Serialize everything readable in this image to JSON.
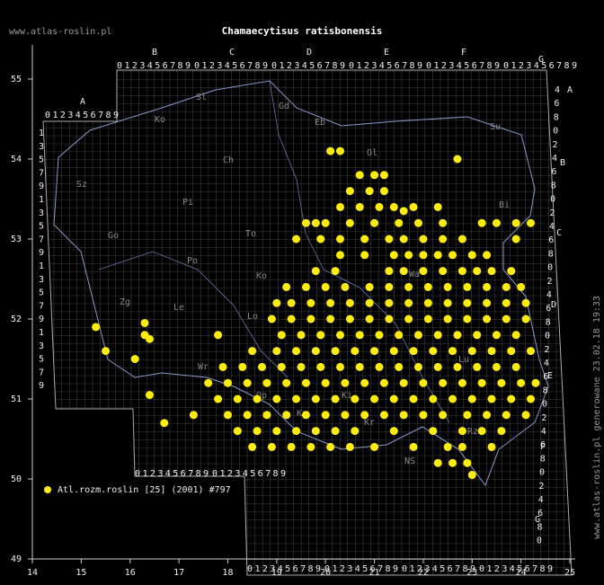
{
  "chart_data": {
    "type": "scatter",
    "title": "Chamaecytisus ratisbonensis",
    "site": "www.atlas-roslin.pl",
    "footnote": "www.atlas-roslin.pl generowane 23.02.18 19:33",
    "xlim": [
      14,
      25
    ],
    "ylim": [
      49,
      55
    ],
    "xticks": [
      14,
      15,
      16,
      17,
      18,
      19,
      20,
      21,
      22,
      23,
      24,
      25
    ],
    "yticks": [
      49,
      50,
      51,
      52,
      53,
      54,
      55
    ],
    "grid_letters": [
      "A",
      "B",
      "C",
      "D",
      "E",
      "F",
      "G"
    ],
    "grid_digits": "0123456789",
    "row_digits": [
      "1",
      "3",
      "5",
      "7",
      "9"
    ],
    "right_digits": [
      "4",
      "6",
      "8",
      "0",
      "2"
    ],
    "regions": [
      "Sz",
      "Ko",
      "Sl",
      "Gd",
      "Eb",
      "Su",
      "Ch",
      "Pi",
      "To",
      "Ol",
      "Bi",
      "Go",
      "Po",
      "Ko",
      "Wa",
      "Zg",
      "Le",
      "Lo",
      "Wr",
      "Op",
      "Ka",
      "Ki",
      "Lu",
      "Rz",
      "Kr",
      "NS"
    ],
    "series": [
      {
        "name": "Atl.rozm.roslin [25] (2001) #797",
        "color": "#ffee00",
        "x": [
          15.3,
          15.5,
          16.1,
          16.3,
          16.3,
          16.4,
          16.4,
          16.7,
          17.3,
          17.8,
          20.1,
          20.3,
          22.7,
          21.6,
          23.0,
          20.7,
          21.0,
          21.2,
          20.5,
          20.9,
          21.2,
          20.3,
          20.7,
          21.1,
          21.4,
          21.8,
          22.3,
          19.6,
          19.8,
          20.0,
          20.5,
          21.0,
          21.5,
          21.9,
          22.4,
          23.2,
          23.5,
          23.9,
          24.2,
          19.4,
          19.9,
          20.3,
          20.8,
          21.3,
          21.6,
          22.0,
          22.4,
          22.8,
          23.9,
          20.3,
          20.8,
          21.4,
          21.7,
          22.0,
          22.3,
          22.6,
          23.0,
          23.3,
          19.8,
          20.2,
          21.3,
          21.6,
          22.0,
          22.4,
          22.8,
          23.1,
          23.4,
          23.8,
          19.2,
          19.6,
          20.0,
          20.4,
          20.9,
          21.3,
          21.7,
          22.1,
          22.5,
          22.9,
          23.3,
          23.7,
          24.0,
          19.0,
          19.3,
          19.7,
          20.1,
          20.5,
          20.9,
          21.3,
          21.7,
          22.1,
          22.5,
          22.9,
          23.3,
          23.7,
          24.1,
          18.9,
          19.3,
          19.7,
          20.1,
          20.5,
          20.9,
          21.3,
          21.7,
          22.1,
          22.5,
          22.9,
          23.3,
          23.7,
          24.1,
          19.1,
          19.5,
          19.9,
          20.3,
          20.7,
          21.1,
          21.5,
          21.9,
          22.3,
          22.7,
          23.1,
          23.5,
          23.9,
          18.5,
          19.0,
          19.4,
          19.8,
          20.2,
          20.6,
          21.0,
          21.4,
          21.8,
          22.2,
          22.6,
          23.0,
          23.4,
          23.8,
          24.2,
          17.9,
          18.3,
          18.7,
          19.1,
          19.5,
          19.9,
          20.3,
          20.7,
          21.1,
          21.5,
          21.9,
          22.3,
          22.7,
          23.1,
          23.5,
          23.9,
          17.6,
          18.0,
          18.4,
          18.8,
          19.2,
          19.6,
          20.0,
          20.4,
          20.8,
          21.2,
          21.6,
          22.0,
          22.4,
          22.8,
          23.2,
          23.6,
          24.0,
          24.3,
          17.8,
          18.2,
          18.6,
          19.0,
          19.4,
          19.8,
          20.2,
          20.6,
          21.0,
          21.4,
          21.8,
          22.2,
          22.6,
          23.0,
          23.4,
          23.8,
          24.2,
          18.0,
          18.4,
          18.8,
          19.2,
          19.6,
          20.0,
          20.4,
          20.8,
          21.2,
          21.6,
          22.0,
          22.4,
          22.9,
          23.3,
          23.7,
          24.1,
          18.2,
          18.6,
          19.0,
          19.4,
          19.8,
          20.2,
          20.6,
          21.4,
          22.2,
          22.8,
          23.2,
          23.6,
          18.5,
          18.9,
          19.3,
          19.7,
          20.1,
          20.5,
          21.0,
          21.8,
          22.5,
          22.8,
          23.4,
          22.3,
          22.6,
          22.9
        ],
        "values": [
          51.9,
          51.6,
          51.5,
          51.95,
          51.8,
          51.75,
          51.05,
          50.7,
          50.8,
          51.8,
          54.1,
          54.1,
          54.0,
          53.35,
          50.05,
          53.8,
          53.8,
          53.8,
          53.6,
          53.6,
          53.6,
          53.4,
          53.4,
          53.4,
          53.4,
          53.4,
          53.4,
          53.2,
          53.2,
          53.2,
          53.2,
          53.2,
          53.2,
          53.2,
          53.2,
          53.2,
          53.2,
          53.2,
          53.2,
          53.0,
          53.0,
          53.0,
          53.0,
          53.0,
          53.0,
          53.0,
          53.0,
          53.0,
          53.0,
          52.8,
          52.8,
          52.8,
          52.8,
          52.8,
          52.8,
          52.8,
          52.8,
          52.8,
          52.6,
          52.6,
          52.6,
          52.6,
          52.6,
          52.6,
          52.6,
          52.6,
          52.6,
          52.6,
          52.4,
          52.4,
          52.4,
          52.4,
          52.4,
          52.4,
          52.4,
          52.4,
          52.4,
          52.4,
          52.4,
          52.4,
          52.4,
          52.2,
          52.2,
          52.2,
          52.2,
          52.2,
          52.2,
          52.2,
          52.2,
          52.2,
          52.2,
          52.2,
          52.2,
          52.2,
          52.2,
          52.0,
          52.0,
          52.0,
          52.0,
          52.0,
          52.0,
          52.0,
          52.0,
          52.0,
          52.0,
          52.0,
          52.0,
          52.0,
          52.0,
          51.8,
          51.8,
          51.8,
          51.8,
          51.8,
          51.8,
          51.8,
          51.8,
          51.8,
          51.8,
          51.8,
          51.8,
          51.8,
          51.6,
          51.6,
          51.6,
          51.6,
          51.6,
          51.6,
          51.6,
          51.6,
          51.6,
          51.6,
          51.6,
          51.6,
          51.6,
          51.6,
          51.6,
          51.4,
          51.4,
          51.4,
          51.4,
          51.4,
          51.4,
          51.4,
          51.4,
          51.4,
          51.4,
          51.4,
          51.4,
          51.4,
          51.4,
          51.4,
          51.4,
          51.2,
          51.2,
          51.2,
          51.2,
          51.2,
          51.2,
          51.2,
          51.2,
          51.2,
          51.2,
          51.2,
          51.2,
          51.2,
          51.2,
          51.2,
          51.2,
          51.2,
          51.2,
          51.0,
          51.0,
          51.0,
          51.0,
          51.0,
          51.0,
          51.0,
          51.0,
          51.0,
          51.0,
          51.0,
          51.0,
          51.0,
          51.0,
          51.0,
          51.0,
          51.0,
          50.8,
          50.8,
          50.8,
          50.8,
          50.8,
          50.8,
          50.8,
          50.8,
          50.8,
          50.8,
          50.8,
          50.8,
          50.8,
          50.8,
          50.8,
          50.8,
          50.6,
          50.6,
          50.6,
          50.6,
          50.6,
          50.6,
          50.6,
          50.6,
          50.6,
          50.6,
          50.6,
          50.6,
          50.4,
          50.4,
          50.4,
          50.4,
          50.4,
          50.4,
          50.4,
          50.4,
          50.4,
          50.4,
          50.4,
          50.2,
          50.2,
          50.2
        ]
      }
    ]
  }
}
